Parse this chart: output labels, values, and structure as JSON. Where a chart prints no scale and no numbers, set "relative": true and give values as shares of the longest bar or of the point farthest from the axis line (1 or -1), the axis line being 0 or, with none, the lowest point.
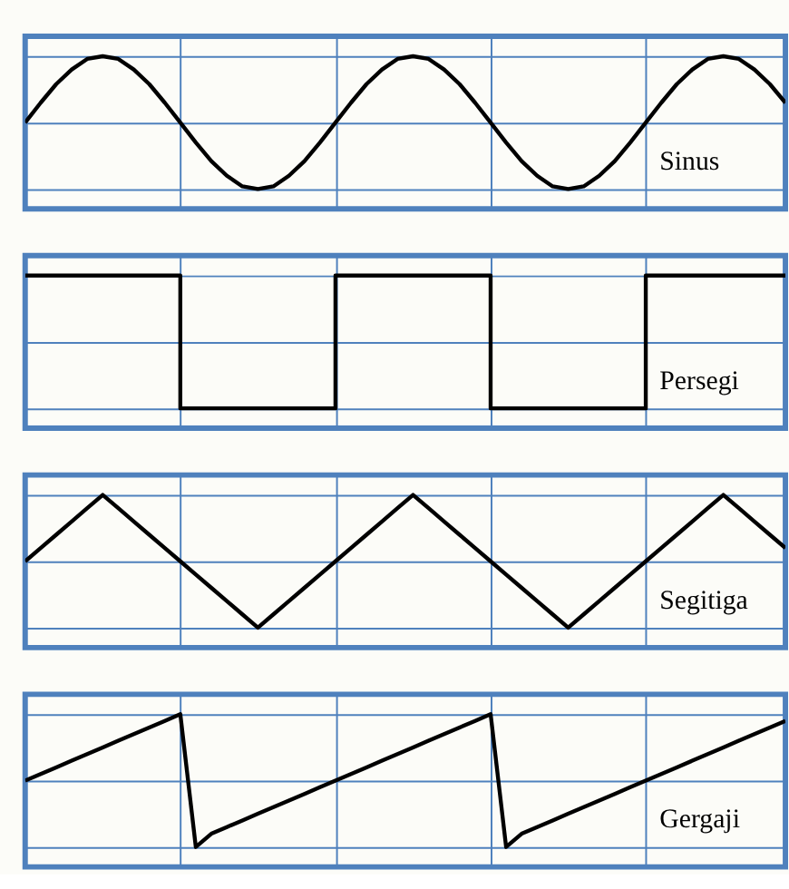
{
  "chart_data": [
    {
      "type": "line",
      "relative": true,
      "tick_labels": false,
      "grid": true,
      "annotations": [
        "Sinus"
      ],
      "categories": [
        null,
        null,
        null,
        null,
        null,
        null,
        null,
        null,
        null,
        null,
        null,
        null,
        null,
        null,
        null,
        null,
        null,
        null,
        null,
        null,
        null,
        null,
        null,
        null,
        null,
        null,
        null,
        null,
        null,
        null,
        null,
        null,
        null,
        null,
        null,
        null,
        null,
        null,
        null,
        null,
        null,
        null,
        null,
        null,
        null,
        null,
        null,
        null,
        null,
        null
      ],
      "series": [
        {
          "color": "#000000",
          "values": [
            0.5,
            0.65,
            0.79,
            0.9,
            0.98,
            1,
            0.98,
            0.9,
            0.79,
            0.65,
            0.5,
            0.35,
            0.21,
            0.1,
            0.02,
            0,
            0.02,
            0.1,
            0.21,
            0.35,
            0.5,
            0.65,
            0.79,
            0.9,
            0.98,
            1,
            0.98,
            0.9,
            0.79,
            0.65,
            0.5,
            0.35,
            0.21,
            0.1,
            0.02,
            0,
            0.02,
            0.1,
            0.21,
            0.35,
            0.5,
            0.65,
            0.79,
            0.9,
            0.98,
            1,
            0.98,
            0.9,
            0.79,
            0.65
          ]
        }
      ]
    },
    {
      "type": "step",
      "relative": true,
      "tick_labels": false,
      "grid": true,
      "annotations": [
        "Persegi"
      ],
      "categories": [
        null,
        null,
        null,
        null,
        null,
        null,
        null,
        null,
        null,
        null,
        null,
        null,
        null,
        null,
        null,
        null,
        null,
        null,
        null,
        null,
        null,
        null,
        null,
        null,
        null,
        null,
        null,
        null,
        null,
        null,
        null,
        null,
        null,
        null,
        null,
        null,
        null,
        null,
        null,
        null,
        null,
        null,
        null,
        null,
        null,
        null,
        null,
        null,
        null,
        null
      ],
      "series": [
        {
          "color": "#000000",
          "values": [
            1,
            1,
            1,
            1,
            1,
            1,
            1,
            1,
            1,
            1,
            0,
            0,
            0,
            0,
            0,
            0,
            0,
            0,
            0,
            0,
            1,
            1,
            1,
            1,
            1,
            1,
            1,
            1,
            1,
            1,
            0,
            0,
            0,
            0,
            0,
            0,
            0,
            0,
            0,
            0,
            1,
            1,
            1,
            1,
            1,
            1,
            1,
            1,
            1,
            1
          ]
        }
      ]
    },
    {
      "type": "line",
      "relative": true,
      "tick_labels": false,
      "grid": true,
      "annotations": [
        "Segitiga"
      ],
      "categories": [
        null,
        null,
        null,
        null,
        null,
        null,
        null,
        null,
        null,
        null,
        null,
        null,
        null,
        null,
        null,
        null,
        null,
        null,
        null,
        null,
        null,
        null,
        null,
        null,
        null,
        null,
        null,
        null,
        null,
        null,
        null,
        null,
        null,
        null,
        null,
        null,
        null,
        null,
        null,
        null,
        null,
        null,
        null,
        null,
        null,
        null,
        null,
        null,
        null,
        null
      ],
      "series": [
        {
          "color": "#000000",
          "values": [
            0.5,
            0.6,
            0.7,
            0.8,
            0.9,
            1,
            0.9,
            0.8,
            0.7,
            0.6,
            0.5,
            0.4,
            0.3,
            0.2,
            0.1,
            0,
            0.1,
            0.2,
            0.3,
            0.4,
            0.5,
            0.6,
            0.7,
            0.8,
            0.9,
            1,
            0.9,
            0.8,
            0.7,
            0.6,
            0.5,
            0.4,
            0.3,
            0.2,
            0.1,
            0,
            0.1,
            0.2,
            0.3,
            0.4,
            0.5,
            0.6,
            0.7,
            0.8,
            0.9,
            1,
            0.9,
            0.8,
            0.7,
            0.6
          ]
        }
      ]
    },
    {
      "type": "line",
      "relative": true,
      "tick_labels": false,
      "grid": true,
      "annotations": [
        "Gergaji"
      ],
      "categories": [
        null,
        null,
        null,
        null,
        null,
        null,
        null,
        null,
        null,
        null,
        null,
        null,
        null,
        null,
        null,
        null,
        null,
        null,
        null,
        null,
        null,
        null,
        null,
        null,
        null,
        null,
        null,
        null,
        null,
        null,
        null,
        null,
        null,
        null,
        null,
        null,
        null,
        null,
        null,
        null,
        null,
        null,
        null,
        null,
        null,
        null,
        null,
        null,
        null,
        null
      ],
      "series": [
        {
          "color": "#000000",
          "values": [
            0.5,
            0.55,
            0.6,
            0.65,
            0.7,
            0.75,
            0.8,
            0.85,
            0.9,
            0.95,
            1,
            0,
            0.1,
            0.15,
            0.2,
            0.25,
            0.3,
            0.35,
            0.4,
            0.45,
            0.5,
            0.55,
            0.6,
            0.65,
            0.7,
            0.75,
            0.8,
            0.85,
            0.9,
            0.95,
            1,
            0,
            0.1,
            0.15,
            0.2,
            0.25,
            0.3,
            0.35,
            0.4,
            0.45,
            0.5,
            0.55,
            0.6,
            0.65,
            0.7,
            0.75,
            0.8,
            0.85,
            0.9,
            0.95
          ]
        }
      ]
    }
  ]
}
